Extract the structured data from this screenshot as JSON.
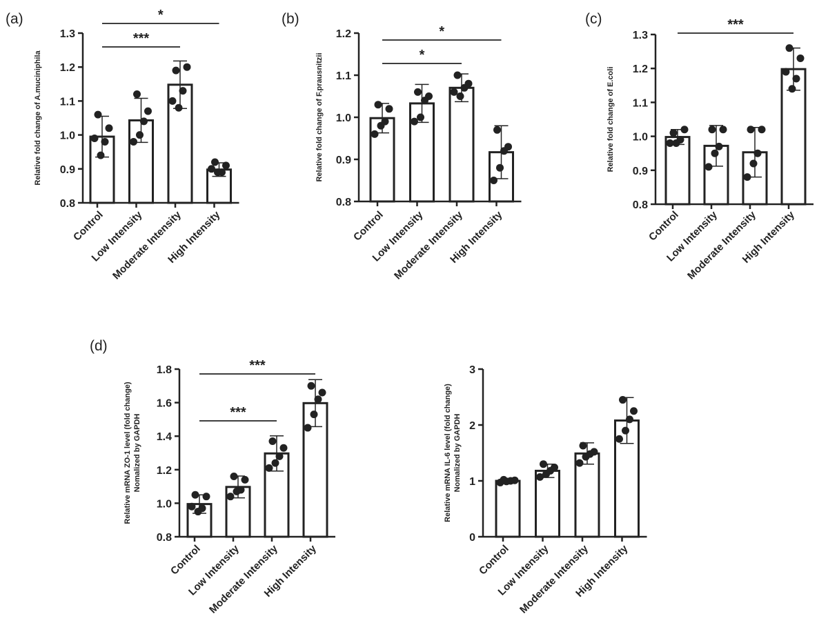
{
  "chart_data": [
    {
      "type": "bar",
      "panel_label": "(a)",
      "ylabel": "Relative fold change of A.muciniphila",
      "ylim": [
        0.8,
        1.3
      ],
      "yticks": [
        "0.8",
        "0.9",
        "1.0",
        "1.1",
        "1.2",
        "1.3"
      ],
      "categories": [
        "Control",
        "Low Intensity",
        "Moderate Intensity",
        "High Intensity"
      ],
      "values": [
        0.995,
        1.043,
        1.148,
        0.898
      ],
      "errors": [
        0.06,
        0.065,
        0.07,
        0.02
      ],
      "points": [
        [
          1.06,
          1.02,
          0.98,
          0.94,
          0.99
        ],
        [
          1.12,
          1.07,
          1.04,
          1.0,
          0.98
        ],
        [
          1.19,
          1.2,
          1.13,
          1.08,
          1.1
        ],
        [
          0.92,
          0.91,
          0.89,
          0.89,
          0.9
        ]
      ],
      "significance": [
        {
          "from": 0,
          "to": 3,
          "label": "*"
        },
        {
          "from": 0,
          "to": 2,
          "label": "***"
        }
      ],
      "grid": false
    },
    {
      "type": "bar",
      "panel_label": "(b)",
      "ylabel": "Relative fold change of F.prausnitzii",
      "ylim": [
        0.8,
        1.2
      ],
      "yticks": [
        "0.8",
        "0.9",
        "1.0",
        "1.1",
        "1.2"
      ],
      "categories": [
        "Control",
        "Low Intensity",
        "Moderate Intensity",
        "High Intensity"
      ],
      "values": [
        0.998,
        1.033,
        1.07,
        0.917
      ],
      "errors": [
        0.035,
        0.045,
        0.033,
        0.063
      ],
      "points": [
        [
          1.03,
          1.02,
          0.99,
          0.98,
          0.96
        ],
        [
          1.06,
          1.05,
          1.04,
          1.0,
          0.99
        ],
        [
          1.1,
          1.08,
          1.07,
          1.05,
          1.06
        ],
        [
          0.97,
          0.93,
          0.92,
          0.88,
          0.85
        ]
      ],
      "significance": [
        {
          "from": 0,
          "to": 3,
          "label": "*"
        },
        {
          "from": 0,
          "to": 2,
          "label": "*"
        }
      ],
      "grid": false
    },
    {
      "type": "bar",
      "panel_label": "(c)",
      "ylabel": "Relative fold change of E.coli",
      "ylim": [
        0.8,
        1.3
      ],
      "yticks": [
        "0.8",
        "0.9",
        "1.0",
        "1.1",
        "1.2",
        "1.3"
      ],
      "categories": [
        "Control",
        "Low Intensity",
        "Moderate Intensity",
        "High Intensity"
      ],
      "values": [
        0.998,
        0.972,
        0.953,
        1.198
      ],
      "errors": [
        0.022,
        0.06,
        0.073,
        0.062
      ],
      "points": [
        [
          1.01,
          1.02,
          0.99,
          0.98,
          0.98
        ],
        [
          1.02,
          1.02,
          0.97,
          0.95,
          0.91
        ],
        [
          1.02,
          1.02,
          0.95,
          0.92,
          0.88
        ],
        [
          1.26,
          1.23,
          1.17,
          1.14,
          1.19
        ]
      ],
      "significance": [
        {
          "from": 0,
          "to": 3,
          "label": "***"
        }
      ],
      "grid": false
    },
    {
      "type": "bar",
      "panel_label": "(d)",
      "ylabel_lines": [
        "Relative mRNA ZO-1 level (fold change)",
        "Nomalized by GAPDH"
      ],
      "ylim": [
        0.8,
        1.8
      ],
      "yticks": [
        "0.8",
        "1.0",
        "1.2",
        "1.4",
        "1.6",
        "1.8"
      ],
      "categories": [
        "Control",
        "Low Intensity",
        "Moderate Intensity",
        "High Intensity"
      ],
      "values": [
        0.995,
        1.097,
        1.297,
        1.597
      ],
      "errors": [
        0.055,
        0.065,
        0.105,
        0.14
      ],
      "points": [
        [
          1.05,
          1.04,
          0.97,
          0.95,
          0.98
        ],
        [
          1.16,
          1.14,
          1.08,
          1.07,
          1.04
        ],
        [
          1.37,
          1.33,
          1.28,
          1.24,
          1.21
        ],
        [
          1.7,
          1.66,
          1.62,
          1.53,
          1.45
        ]
      ],
      "significance": [
        {
          "from": 0,
          "to": 3,
          "label": "***"
        },
        {
          "from": 0,
          "to": 2,
          "label": "***"
        }
      ],
      "grid": false
    },
    {
      "type": "bar",
      "panel_label": "",
      "ylabel_lines": [
        "Relative mRNA IL-6 level (fold change)",
        "Nomalized by GAPDH"
      ],
      "ylim": [
        0,
        3
      ],
      "yticks": [
        "0",
        "1",
        "2",
        "3"
      ],
      "categories": [
        "Control",
        "Low Intensity",
        "Moderate Intensity",
        "High Intensity"
      ],
      "values": [
        1.0,
        1.18,
        1.49,
        2.08
      ],
      "errors": [
        0.03,
        0.12,
        0.19,
        0.41
      ],
      "points": [
        [
          1.02,
          1.01,
          1.0,
          0.99,
          0.97
        ],
        [
          1.3,
          1.24,
          1.18,
          1.12,
          1.07
        ],
        [
          1.63,
          1.52,
          1.48,
          1.43,
          1.32
        ],
        [
          2.45,
          2.25,
          2.1,
          1.9,
          1.75
        ]
      ],
      "significance": [],
      "grid": false
    }
  ]
}
